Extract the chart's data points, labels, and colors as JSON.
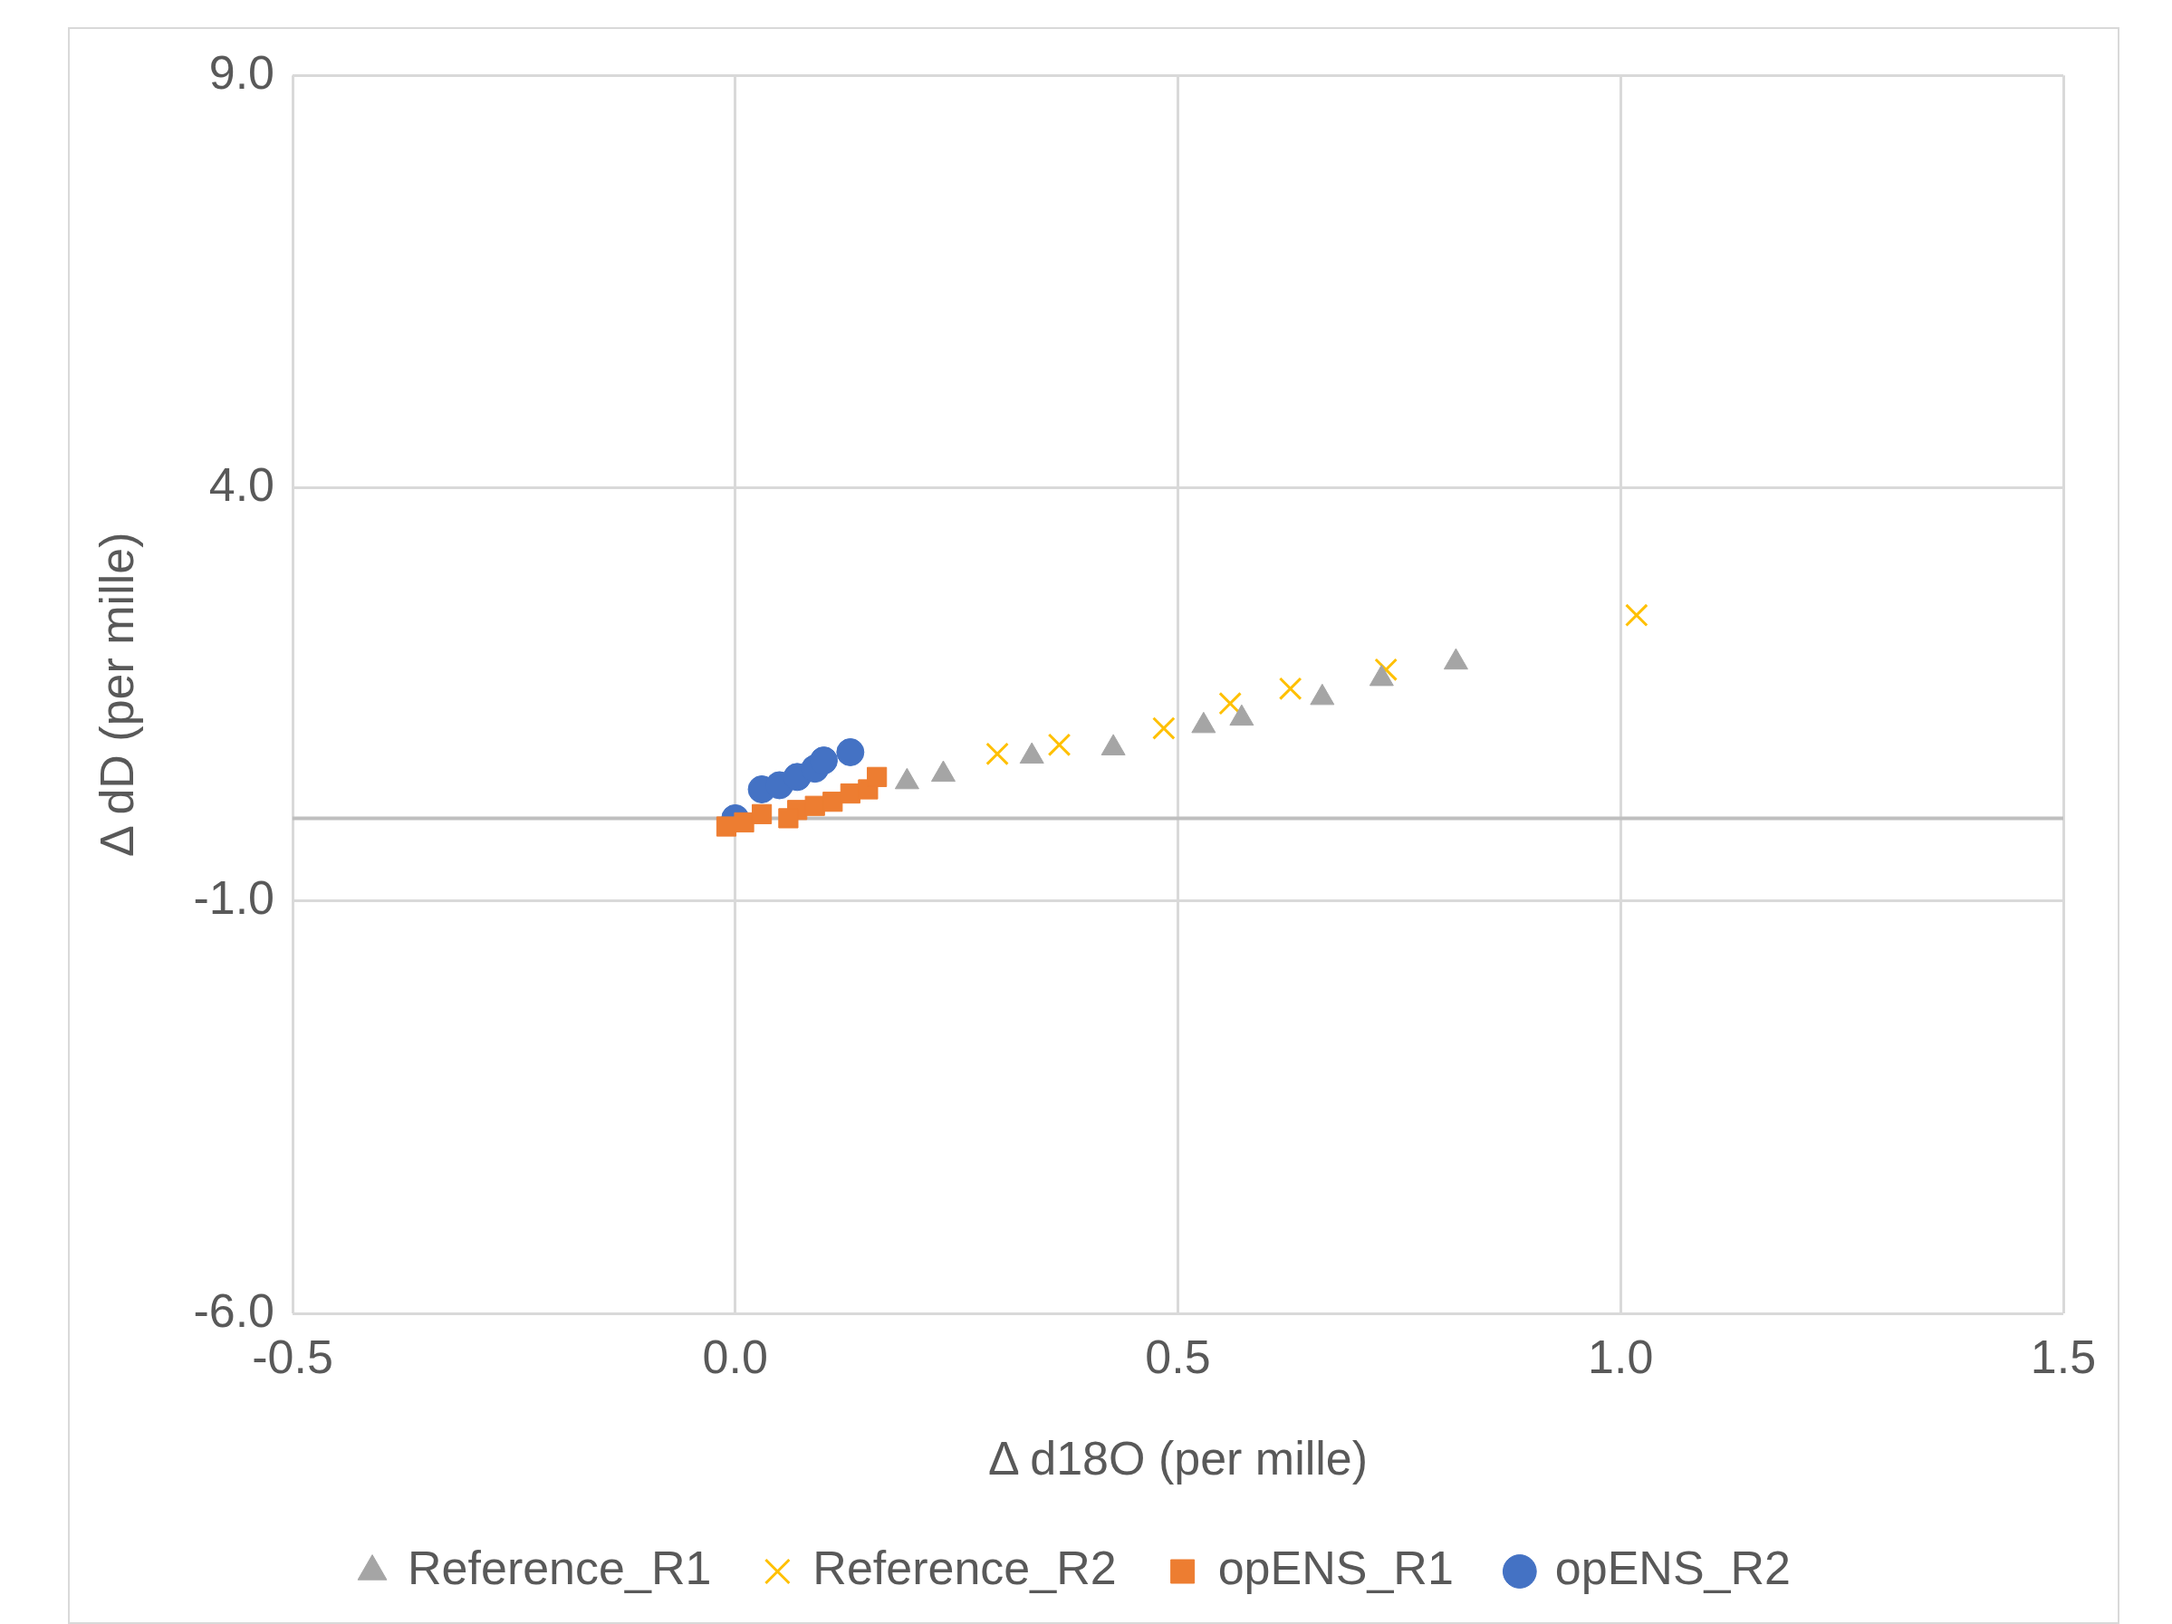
{
  "chart_data": {
    "type": "scatter",
    "xlabel": "Δ d18O (per mille)",
    "ylabel": "Δ dD (per mille)",
    "xlim": [
      -0.5,
      1.5
    ],
    "xticks": [
      {
        "value": -0.5,
        "label": "-0.5"
      },
      {
        "value": 0,
        "label": "0.0"
      },
      {
        "value": 0.5,
        "label": "0.5"
      },
      {
        "value": 1,
        "label": "1.0"
      },
      {
        "value": 1.5,
        "label": "1.5"
      }
    ],
    "ylim": [
      -6,
      9
    ],
    "yticks": [
      {
        "value": -6,
        "label": "-6.0"
      },
      {
        "value": -1,
        "label": "-1.0"
      },
      {
        "value": 4,
        "label": "4.0"
      },
      {
        "value": 9,
        "label": "9.0"
      }
    ],
    "grid": true,
    "legend": "bottom",
    "ref_lines": [
      {
        "axis": "y",
        "value": 0,
        "label": null,
        "color": "#bfbfbf"
      }
    ],
    "series": [
      {
        "name": "Reference_R1",
        "color": "#a5a5a5",
        "marker": "triangle",
        "x": [
          0.194,
          0.235,
          0.335,
          0.427,
          0.529,
          0.572,
          0.663,
          0.73,
          0.814
        ],
        "values": [
          0.44,
          0.53,
          0.75,
          0.85,
          1.12,
          1.21,
          1.46,
          1.69,
          1.89
        ]
      },
      {
        "name": "Reference_R2",
        "color": "#ffc000",
        "marker": "cross",
        "x": [
          0.296,
          0.366,
          0.484,
          0.559,
          0.627,
          0.735,
          1.018
        ],
        "values": [
          0.78,
          0.89,
          1.09,
          1.39,
          1.57,
          1.8,
          2.46
        ]
      },
      {
        "name": "opENS_R1",
        "color": "#ed7d31",
        "marker": "square",
        "x": [
          -0.01,
          0.01,
          0.03,
          0.07,
          0.09,
          0.11,
          0.13,
          0.15,
          0.16,
          0.06
        ],
        "values": [
          -0.1,
          -0.05,
          0.05,
          0.1,
          0.15,
          0.2,
          0.3,
          0.35,
          0.5,
          0.0
        ]
      },
      {
        "name": "opENS_R2",
        "color": "#4472c4",
        "marker": "circle",
        "x": [
          0.0,
          0.03,
          0.05,
          0.07,
          0.09,
          0.1,
          0.13
        ],
        "values": [
          0.0,
          0.35,
          0.4,
          0.5,
          0.6,
          0.7,
          0.8
        ]
      }
    ]
  }
}
